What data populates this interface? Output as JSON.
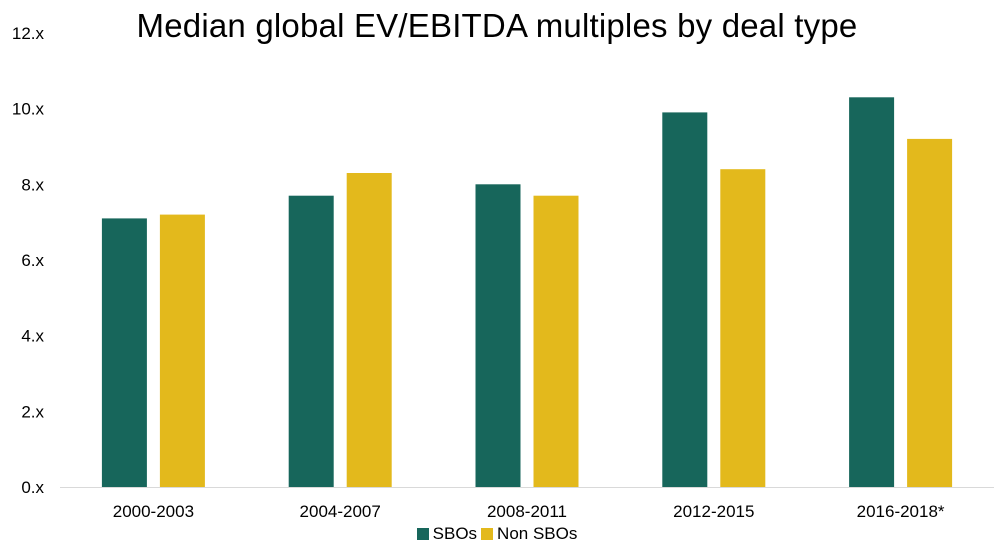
{
  "chart_data": {
    "type": "bar",
    "title": "Median global EV/EBITDA multiples by deal type",
    "categories": [
      "2000-2003",
      "2004-2007",
      "2008-2011",
      "2012-2015",
      "2016-2018*"
    ],
    "series": [
      {
        "name": "SBOs",
        "color": "#17665b",
        "values": [
          7.1,
          7.7,
          8.0,
          9.9,
          10.3
        ]
      },
      {
        "name": "Non SBOs",
        "color": "#e3b91c",
        "values": [
          7.2,
          8.3,
          7.7,
          8.4,
          9.2
        ]
      }
    ],
    "y_ticks": [
      "0.x",
      "2.x",
      "4.x",
      "6.x",
      "8.x",
      "10.x",
      "12.x"
    ],
    "ylim": [
      0,
      12
    ],
    "grid": false,
    "legend_position": "bottom"
  }
}
